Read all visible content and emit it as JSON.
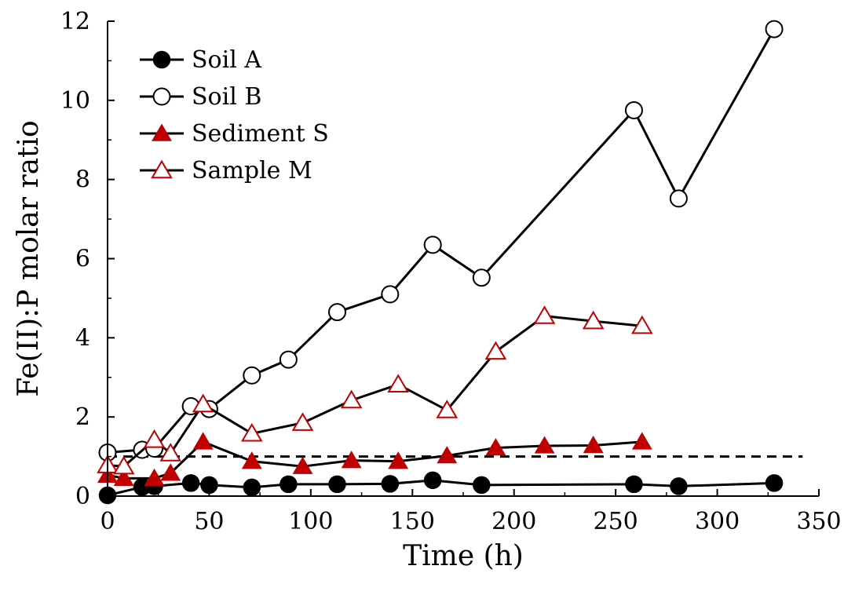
{
  "chart_data": {
    "type": "line",
    "title": "",
    "xlabel": "Time (h)",
    "ylabel": "Fe(II):P molar ratio",
    "xlim": [
      0,
      350
    ],
    "ylim": [
      0,
      12
    ],
    "xticks": [
      0,
      50,
      100,
      150,
      200,
      250,
      300,
      350
    ],
    "yticks": [
      0,
      2,
      4,
      6,
      8,
      10,
      12
    ],
    "grid": false,
    "legend_position": "top-left",
    "reference_line": {
      "y": 1,
      "style": "dashed",
      "color": "#000000"
    },
    "series": [
      {
        "name": "Soil A",
        "marker": "filled-circle",
        "marker_color": "#000000",
        "line_color": "#000000",
        "x": [
          0,
          17,
          23,
          41,
          50,
          71,
          89,
          113,
          139,
          160,
          184,
          259,
          281,
          328
        ],
        "y": [
          0.02,
          0.23,
          0.25,
          0.33,
          0.28,
          0.22,
          0.3,
          0.3,
          0.31,
          0.4,
          0.28,
          0.3,
          0.25,
          0.33
        ]
      },
      {
        "name": "Soil B",
        "marker": "open-circle",
        "marker_color": "#000000",
        "line_color": "#000000",
        "x": [
          0,
          17,
          23,
          41,
          50,
          71,
          89,
          113,
          139,
          160,
          184,
          259,
          281,
          328
        ],
        "y": [
          1.1,
          1.17,
          1.2,
          2.27,
          2.2,
          3.05,
          3.45,
          4.65,
          5.1,
          6.35,
          5.52,
          9.75,
          7.52,
          11.8
        ]
      },
      {
        "name": "Sediment S",
        "marker": "filled-triangle",
        "marker_color": "#c00000",
        "line_color": "#000000",
        "x": [
          0,
          8,
          23,
          31,
          47,
          71,
          96,
          120,
          143,
          167,
          191,
          215,
          239,
          263
        ],
        "y": [
          0.53,
          0.45,
          0.45,
          0.58,
          1.37,
          0.88,
          0.75,
          0.9,
          0.88,
          1.02,
          1.22,
          1.27,
          1.28,
          1.37
        ]
      },
      {
        "name": "Sample M",
        "marker": "open-triangle",
        "marker_color": "#c00000",
        "line_color": "#000000",
        "x": [
          0,
          8,
          23,
          31,
          47,
          71,
          96,
          120,
          143,
          167,
          191,
          215,
          239,
          263
        ],
        "y": [
          0.78,
          0.75,
          1.42,
          1.08,
          2.32,
          1.58,
          1.85,
          2.42,
          2.82,
          2.17,
          3.65,
          4.55,
          4.42,
          4.3
        ]
      }
    ]
  }
}
